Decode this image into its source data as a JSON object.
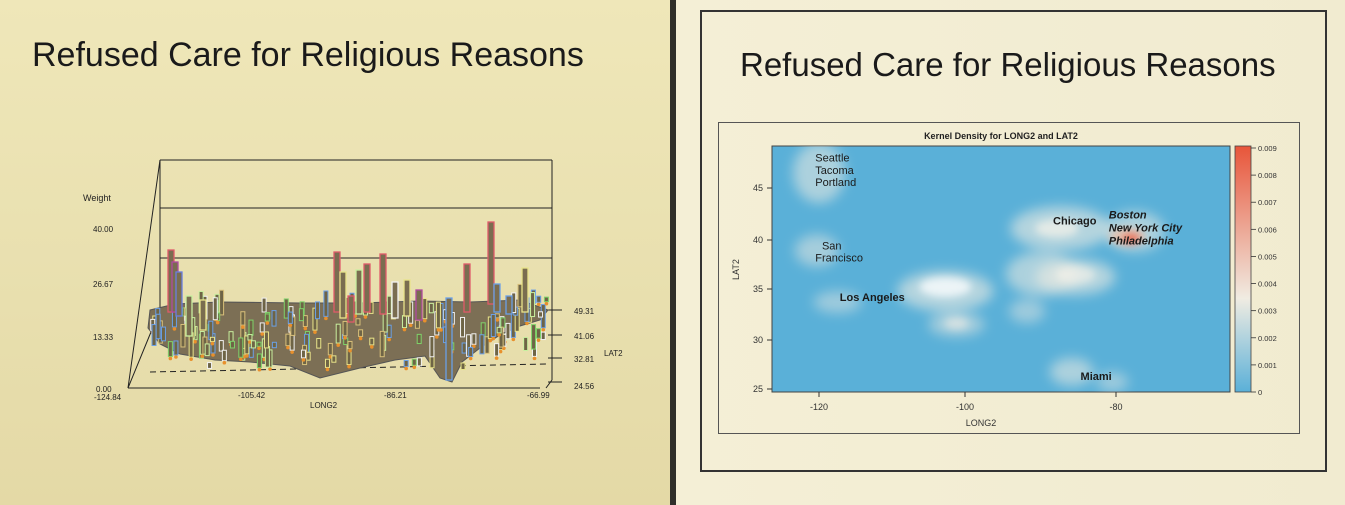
{
  "left": {
    "title": "Refused Care for Religious Reasons",
    "chart_data": {
      "type": "bar3d",
      "zlabel": "Weight",
      "xlabel": "LONG2",
      "ylabel": "LAT2",
      "z_ticks": [
        "40.00",
        "26.67",
        "13.33",
        "0.00"
      ],
      "x_ticks": [
        "-124.84",
        "-105.42",
        "-86.21",
        "-66.99"
      ],
      "y_ticks": [
        "49.31",
        "41.06",
        "32.81",
        "24.56"
      ],
      "zlim": [
        0,
        40
      ],
      "xlim": [
        -124.84,
        -66.99
      ],
      "ylim": [
        24.56,
        49.31
      ]
    }
  },
  "right": {
    "title": "Refused Care for Religious Reasons",
    "chart_data": {
      "type": "heatmap",
      "title": "Kernel Density for LONG2 and LAT2",
      "xlabel": "LONG2",
      "ylabel": "LAT2",
      "x_ticks": [
        "-120",
        "-100",
        "-80"
      ],
      "y_ticks": [
        "45",
        "40",
        "35",
        "30",
        "25"
      ],
      "colorbar_ticks": [
        "0.009",
        "0.008",
        "0.007",
        "0.006",
        "0.005",
        "0.004",
        "0.003",
        "0.002",
        "0.001",
        "0"
      ],
      "colorbar_range": [
        0,
        0.009
      ],
      "colors": {
        "low": "#5ab0d8",
        "mid": "#f0ece2",
        "high": "#e8553a"
      },
      "annotations": [
        {
          "text": "Seattle",
          "lon": -120.5,
          "lat": 47.6
        },
        {
          "text": "Tacoma",
          "lon": -120.5,
          "lat": 46.4
        },
        {
          "text": "Portland",
          "lon": -120.5,
          "lat": 45.2
        },
        {
          "text": "San",
          "lon": -119.6,
          "lat": 38.9
        },
        {
          "text": "Francisco",
          "lon": -120.5,
          "lat": 37.7
        },
        {
          "text": "Los Angeles",
          "lon": -117.2,
          "lat": 33.8
        },
        {
          "text": "Chicago",
          "lon": -88.5,
          "lat": 41.4
        },
        {
          "text": "Boston",
          "lon": -81.0,
          "lat": 42.0
        },
        {
          "text": "New York City",
          "lon": -81.0,
          "lat": 40.7
        },
        {
          "text": "Philadelphia",
          "lon": -81.0,
          "lat": 39.4
        },
        {
          "text": "Miami",
          "lon": -84.8,
          "lat": 26.0
        }
      ]
    }
  }
}
